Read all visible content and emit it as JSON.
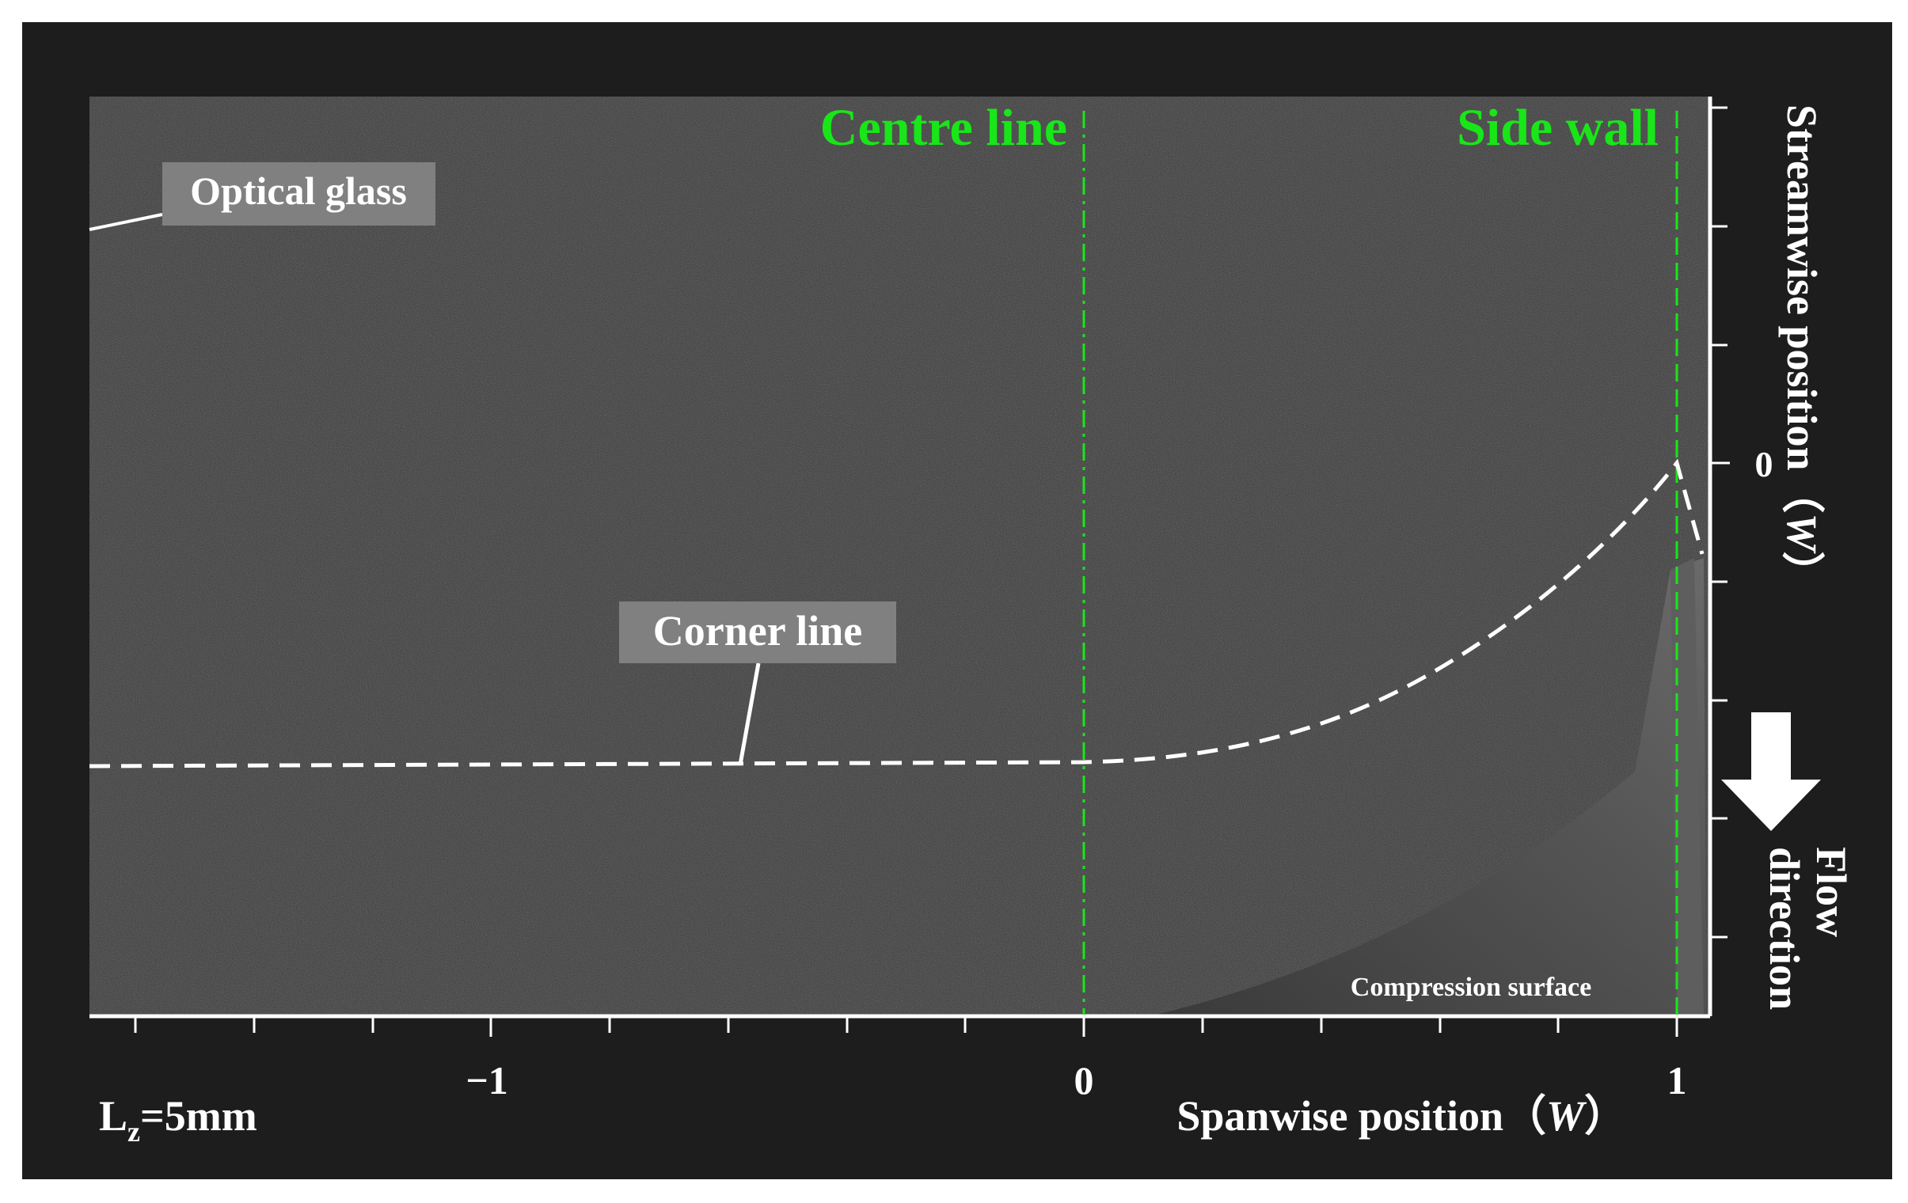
{
  "labels": {
    "centre_line": "Centre line",
    "side_wall": "Side wall",
    "optical_glass": "Optical glass",
    "corner_line": "Corner line",
    "compression_surface": "Compression surface",
    "lz_main": "L",
    "lz_sub": "z",
    "lz_value": "=5mm",
    "flow_direction_1": "Flow",
    "flow_direction_2": "direction"
  },
  "x_axis": {
    "title_main": "Spanwise position（",
    "title_var": "W",
    "title_close": "）",
    "ticks": [
      "−1",
      "0",
      "1"
    ]
  },
  "y_axis": {
    "title_main": "Streamwise position（",
    "title_var": "W",
    "title_close": "）",
    "ticks": [
      "0"
    ]
  },
  "colors": {
    "background": "#1d1d1d",
    "image_fill": "#3a3a3a",
    "reference_lines": "#19e619",
    "annotation": "#ffffff",
    "label_box": "#808080"
  }
}
